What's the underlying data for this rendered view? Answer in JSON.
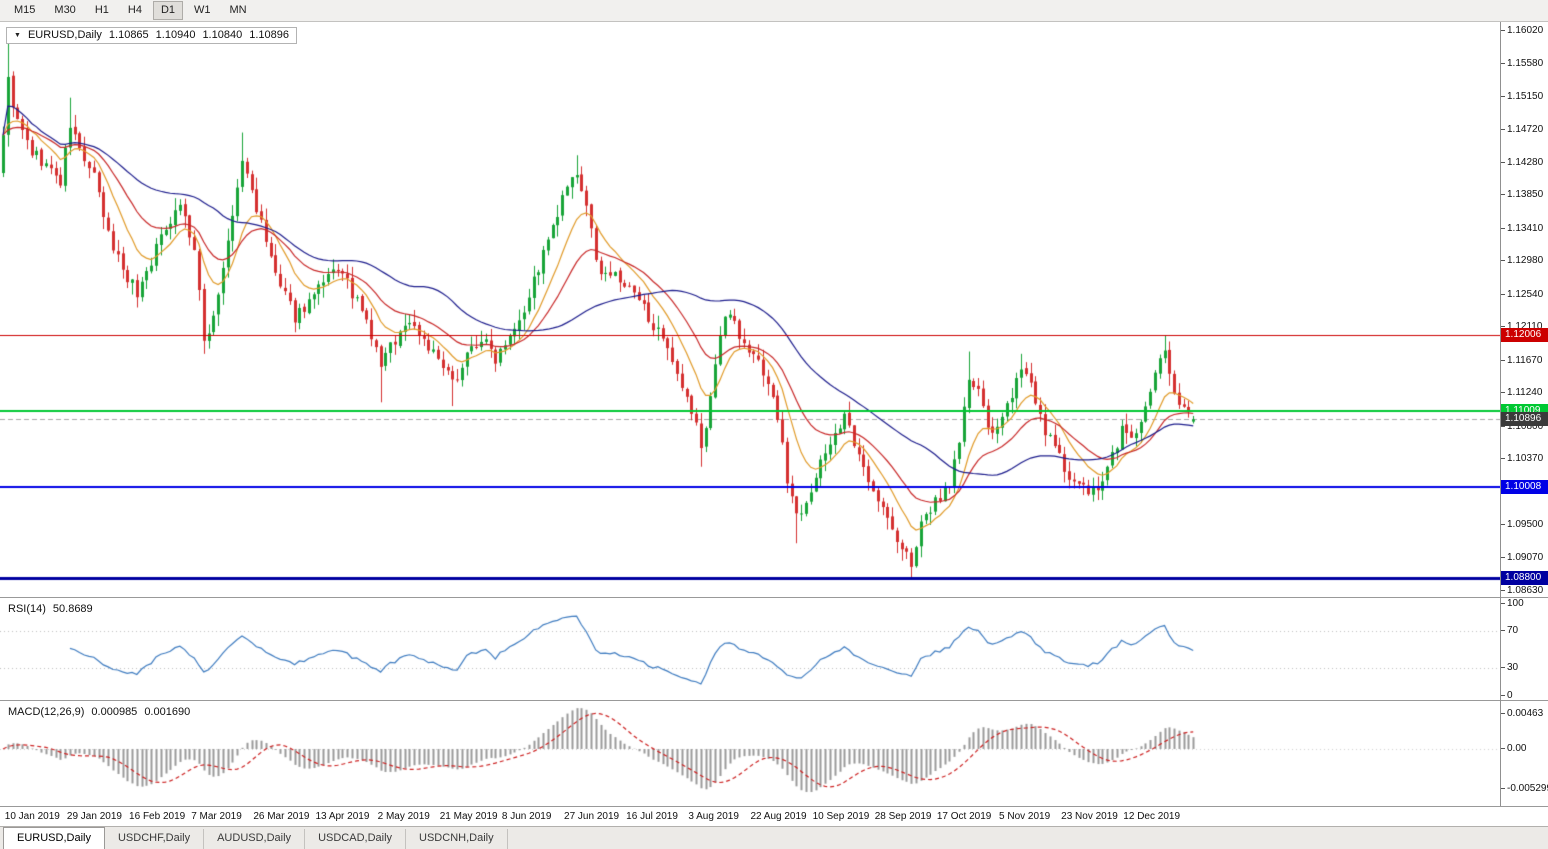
{
  "toolbar": {
    "timeframes": [
      "M15",
      "M30",
      "H1",
      "H4",
      "D1",
      "W1",
      "MN"
    ],
    "active": "D1"
  },
  "chart_header": {
    "collapse_icon": "▼",
    "symbol_label": "EURUSD,Daily",
    "open": "1.10865",
    "high": "1.10940",
    "low": "1.10840",
    "close": "1.10896"
  },
  "price_axis": {
    "labels": [
      "1.16020",
      "1.15580",
      "1.15150",
      "1.14720",
      "1.14280",
      "1.13850",
      "1.13410",
      "1.12980",
      "1.12540",
      "1.12110",
      "1.11670",
      "1.11240",
      "1.10800",
      "1.10370",
      "1.09930",
      "1.09500",
      "1.09070",
      "1.08630"
    ],
    "top_price": 1.1602,
    "bottom_price": 1.0863
  },
  "chart_data": {
    "type": "candlestick",
    "symbol": "EURUSD",
    "timeframe": "Daily",
    "bar_count": 250,
    "seed": 9,
    "noise": 0.0009,
    "wick": 0.0016,
    "up_color": "#18a438",
    "down_color": "#d43030",
    "price_waypoints": [
      [
        0,
        1.147
      ],
      [
        1,
        1.1535
      ],
      [
        3,
        1.148
      ],
      [
        6,
        1.1442
      ],
      [
        9,
        1.1425
      ],
      [
        12,
        1.1402
      ],
      [
        14,
        1.1478
      ],
      [
        16,
        1.1445
      ],
      [
        19,
        1.1408
      ],
      [
        22,
        1.1332
      ],
      [
        25,
        1.129
      ],
      [
        28,
        1.1256
      ],
      [
        31,
        1.13
      ],
      [
        34,
        1.1345
      ],
      [
        37,
        1.1376
      ],
      [
        40,
        1.1312
      ],
      [
        42,
        1.1192
      ],
      [
        44,
        1.1226
      ],
      [
        47,
        1.132
      ],
      [
        50,
        1.143
      ],
      [
        52,
        1.1392
      ],
      [
        55,
        1.1322
      ],
      [
        58,
        1.1262
      ],
      [
        61,
        1.1226
      ],
      [
        64,
        1.1245
      ],
      [
        67,
        1.1266
      ],
      [
        70,
        1.129
      ],
      [
        73,
        1.1256
      ],
      [
        76,
        1.1216
      ],
      [
        79,
        1.1162
      ],
      [
        82,
        1.1196
      ],
      [
        85,
        1.122
      ],
      [
        88,
        1.1196
      ],
      [
        91,
        1.1166
      ],
      [
        94,
        1.1136
      ],
      [
        97,
        1.1176
      ],
      [
        100,
        1.1196
      ],
      [
        103,
        1.1172
      ],
      [
        106,
        1.1206
      ],
      [
        109,
        1.1236
      ],
      [
        112,
        1.129
      ],
      [
        115,
        1.134
      ],
      [
        118,
        1.1396
      ],
      [
        120,
        1.1406
      ],
      [
        122,
        1.1376
      ],
      [
        124,
        1.1292
      ],
      [
        127,
        1.1282
      ],
      [
        130,
        1.1266
      ],
      [
        133,
        1.1246
      ],
      [
        136,
        1.1216
      ],
      [
        139,
        1.1176
      ],
      [
        142,
        1.1126
      ],
      [
        145,
        1.1086
      ],
      [
        146,
        1.1046
      ],
      [
        148,
        1.1122
      ],
      [
        150,
        1.12
      ],
      [
        152,
        1.1236
      ],
      [
        155,
        1.1186
      ],
      [
        158,
        1.1166
      ],
      [
        160,
        1.114
      ],
      [
        162,
        1.1092
      ],
      [
        164,
        1.1012
      ],
      [
        166,
        1.0962
      ],
      [
        168,
        1.0986
      ],
      [
        170,
        1.1012
      ],
      [
        173,
        1.1062
      ],
      [
        176,
        1.1092
      ],
      [
        179,
        1.1036
      ],
      [
        182,
        1.1002
      ],
      [
        185,
        1.0956
      ],
      [
        188,
        1.0916
      ],
      [
        190,
        1.0902
      ],
      [
        192,
        1.0946
      ],
      [
        195,
        1.0982
      ],
      [
        198,
        1.1006
      ],
      [
        200,
        1.1062
      ],
      [
        202,
        1.1142
      ],
      [
        204,
        1.1122
      ],
      [
        206,
        1.1082
      ],
      [
        208,
        1.1072
      ],
      [
        210,
        1.1102
      ],
      [
        212,
        1.115
      ],
      [
        214,
        1.1156
      ],
      [
        216,
        1.1106
      ],
      [
        219,
        1.1062
      ],
      [
        222,
        1.1026
      ],
      [
        225,
        1.1002
      ],
      [
        228,
        1.0992
      ],
      [
        230,
        1.1006
      ],
      [
        232,
        1.1042
      ],
      [
        234,
        1.1076
      ],
      [
        236,
        1.1066
      ],
      [
        238,
        1.1082
      ],
      [
        240,
        1.1122
      ],
      [
        242,
        1.1166
      ],
      [
        243,
        1.1186
      ],
      [
        244,
        1.1152
      ],
      [
        246,
        1.1112
      ],
      [
        248,
        1.1094
      ],
      [
        249,
        1.10896
      ]
    ],
    "extremes": [
      {
        "i": 1,
        "h": 1.1592
      },
      {
        "i": 14,
        "h": 1.1514
      },
      {
        "i": 42,
        "l": 1.1176
      },
      {
        "i": 50,
        "h": 1.1468
      },
      {
        "i": 79,
        "l": 1.1112
      },
      {
        "i": 94,
        "l": 1.1107
      },
      {
        "i": 120,
        "h": 1.1438
      },
      {
        "i": 146,
        "l": 1.1027
      },
      {
        "i": 166,
        "l": 1.0926
      },
      {
        "i": 190,
        "l": 1.0879
      },
      {
        "i": 202,
        "h": 1.1179
      },
      {
        "i": 213,
        "h": 1.1176
      },
      {
        "i": 228,
        "l": 1.0981
      },
      {
        "i": 243,
        "h": 1.12
      },
      {
        "i": 249,
        "o": 1.10865,
        "h": 1.1094,
        "l": 1.1084,
        "c": 1.10896
      }
    ],
    "horizontal_levels": [
      {
        "price": 1.12006,
        "label": "1.12006",
        "color": "#cc0000",
        "width": 1,
        "name": "resistance-level-red"
      },
      {
        "price": 1.11009,
        "label": "1.11009",
        "color": "#00c832",
        "width": 2,
        "name": "support-level-green"
      },
      {
        "price": 1.10896,
        "label": "1.10896",
        "color": "#a9a9a9",
        "width": 1,
        "dashed": true,
        "badge": "#3a3a3a",
        "name": "bid-price-level"
      },
      {
        "price": 1.10008,
        "label": "1.10008",
        "color": "#0000e6",
        "width": 2,
        "name": "support-level-blue"
      },
      {
        "price": 1.088,
        "label": "1.08800",
        "color": "#0000a0",
        "width": 3,
        "name": "support-level-navy"
      }
    ],
    "moving_averages": [
      {
        "type": "ema",
        "period": 10,
        "color": "#e09a28",
        "name": "ma-fast-orange"
      },
      {
        "type": "ema",
        "period": 22,
        "color": "#c82828",
        "name": "ma-medium-red"
      },
      {
        "type": "sma",
        "period": 45,
        "color": "#1c1c8c",
        "name": "ma-slow-navy"
      }
    ],
    "x_axis": {
      "labels": [
        "10 Jan 2019",
        "29 Jan 2019",
        "16 Feb 2019",
        "7 Mar 2019",
        "26 Mar 2019",
        "13 Apr 2019",
        "2 May 2019",
        "21 May 2019",
        "8 Jun 2019",
        "27 Jun 2019",
        "16 Jul 2019",
        "3 Aug 2019",
        "22 Aug 2019",
        "10 Sep 2019",
        "28 Sep 2019",
        "17 Oct 2019",
        "5 Nov 2019",
        "23 Nov 2019",
        "12 Dec 2019"
      ],
      "first_label_bar": 1,
      "label_step": 13
    },
    "rsi": {
      "label": "RSI(14)",
      "value": "50.8689",
      "period": 14,
      "axis_labels": [
        "100",
        "70",
        "30",
        "0"
      ],
      "level_lines": [
        70,
        30
      ],
      "color": "#3f7cc0"
    },
    "macd": {
      "label": "MACD(12,26,9)",
      "value_main": "0.000985",
      "value_signal": "0.001690",
      "fast": 12,
      "slow": 26,
      "signal": 9,
      "axis_labels": [
        {
          "text": "0.00463",
          "value": 0.00463
        },
        {
          "text": "0.00",
          "value": 0
        },
        {
          "text": "-0.005299",
          "value": -0.005299
        }
      ],
      "hist_color": "#9a9a9a",
      "signal_color": "#cc2020"
    }
  },
  "tabs": [
    {
      "label": "EURUSD,Daily",
      "active": true
    },
    {
      "label": "USDCHF,Daily",
      "active": false
    },
    {
      "label": "AUDUSD,Daily",
      "active": false
    },
    {
      "label": "USDCAD,Daily",
      "active": false
    },
    {
      "label": "USDCNH,Daily",
      "active": false
    }
  ]
}
